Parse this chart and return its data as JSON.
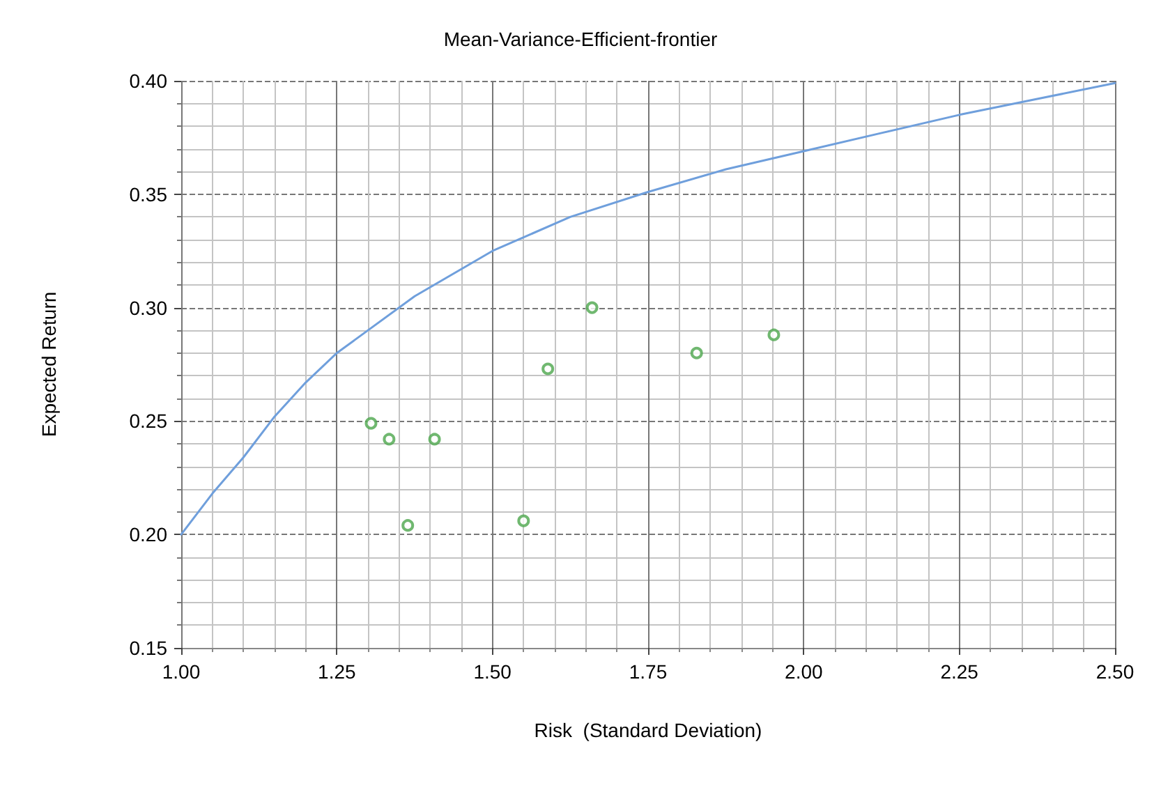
{
  "chart_data": {
    "type": "scatter",
    "title": "Mean-Variance-Efficient-frontier",
    "xlabel": "Risk  (Standard Deviation)",
    "ylabel": "Expected Return",
    "xlim": [
      1.0,
      2.5
    ],
    "xticks": [
      {
        "value": 1.0,
        "label": "1.00"
      },
      {
        "value": 1.25,
        "label": "1.25"
      },
      {
        "value": 1.5,
        "label": "1.50"
      },
      {
        "value": 1.75,
        "label": "1.75"
      },
      {
        "value": 2.0,
        "label": "2.00"
      },
      {
        "value": 2.25,
        "label": "2.25"
      },
      {
        "value": 2.5,
        "label": "2.50"
      }
    ],
    "ylim": [
      0.15,
      0.4
    ],
    "yticks": [
      {
        "value": 0.15,
        "label": "0.15"
      },
      {
        "value": 0.2,
        "label": "0.20"
      },
      {
        "value": 0.25,
        "label": "0.25"
      },
      {
        "value": 0.3,
        "label": "0.30"
      },
      {
        "value": 0.35,
        "label": "0.35"
      },
      {
        "value": 0.4,
        "label": "0.40"
      }
    ],
    "grid": true,
    "series": [
      {
        "type": "line",
        "color": "#6f9fdc",
        "marker": "none",
        "line_style": "solid",
        "x": [
          1.0,
          1.05,
          1.1,
          1.15,
          1.2,
          1.25,
          1.375,
          1.5,
          1.625,
          1.75,
          1.875,
          2.0,
          2.125,
          2.25,
          2.375,
          2.5
        ],
        "values": [
          0.2,
          0.218,
          0.234,
          0.252,
          0.267,
          0.28,
          0.305,
          0.325,
          0.34,
          0.351,
          0.361,
          0.369,
          0.377,
          0.385,
          0.392,
          0.399
        ]
      },
      {
        "color": "#4ca64c",
        "marker": "circle",
        "x": [
          1.305,
          1.334,
          1.364,
          1.407,
          1.55,
          1.589,
          1.66,
          1.828,
          1.952
        ],
        "values": [
          0.249,
          0.242,
          0.204,
          0.242,
          0.206,
          0.273,
          0.3,
          0.28,
          0.288
        ]
      }
    ]
  }
}
